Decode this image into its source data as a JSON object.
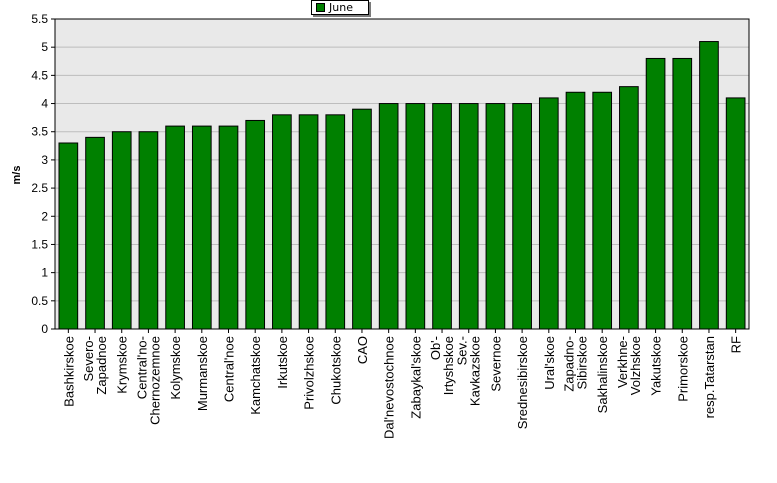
{
  "chart_data": {
    "type": "bar",
    "ylabel": "m/s",
    "xlabel": "",
    "title": "",
    "ylim": [
      0,
      5.5
    ],
    "y_ticks": [
      "0",
      "0.5",
      "1",
      "1.5",
      "2",
      "2.5",
      "3",
      "3.5",
      "4",
      "4.5",
      "5",
      "5.5"
    ],
    "grid": true,
    "legend_position": "top-center",
    "colors": {
      "bar_fill": "#008000",
      "bar_stroke": "#000000",
      "plot_bg": "#e9e9e9",
      "grid": "#bdbdbd"
    },
    "categories": [
      "Bashkirskoe",
      "Severo-Zapadnoe",
      "Krymskoe",
      "Central'no-Chernozemnoe",
      "Kolymskoe",
      "Murmanskoe",
      "Central'noe",
      "Kamchatskoe",
      "Irkutskoe",
      "Privolzhskoe",
      "Chukotskoe",
      "CAO",
      "Dal'nevostochnoe",
      "Zabaykal'skoe",
      "Ob'-Irtyshskoe",
      "Sev.-Kavkazskoe",
      "Severnoe",
      "Srednesibirskoe",
      "Ural'skoe",
      "Zapadno-Sibirskoe",
      "Sakhalinskoe",
      "Verkhne-Volzhskoe",
      "Yakutskoe",
      "Primorskoe",
      "resp.Tatarstan",
      "RF"
    ],
    "series": [
      {
        "name": "June",
        "values": [
          3.3,
          3.4,
          3.5,
          3.5,
          3.6,
          3.6,
          3.6,
          3.7,
          3.8,
          3.8,
          3.8,
          3.9,
          4.0,
          4.0,
          4.0,
          4.0,
          4.0,
          4.0,
          4.1,
          4.2,
          4.2,
          4.3,
          4.8,
          4.8,
          5.1,
          4.1
        ]
      }
    ]
  }
}
